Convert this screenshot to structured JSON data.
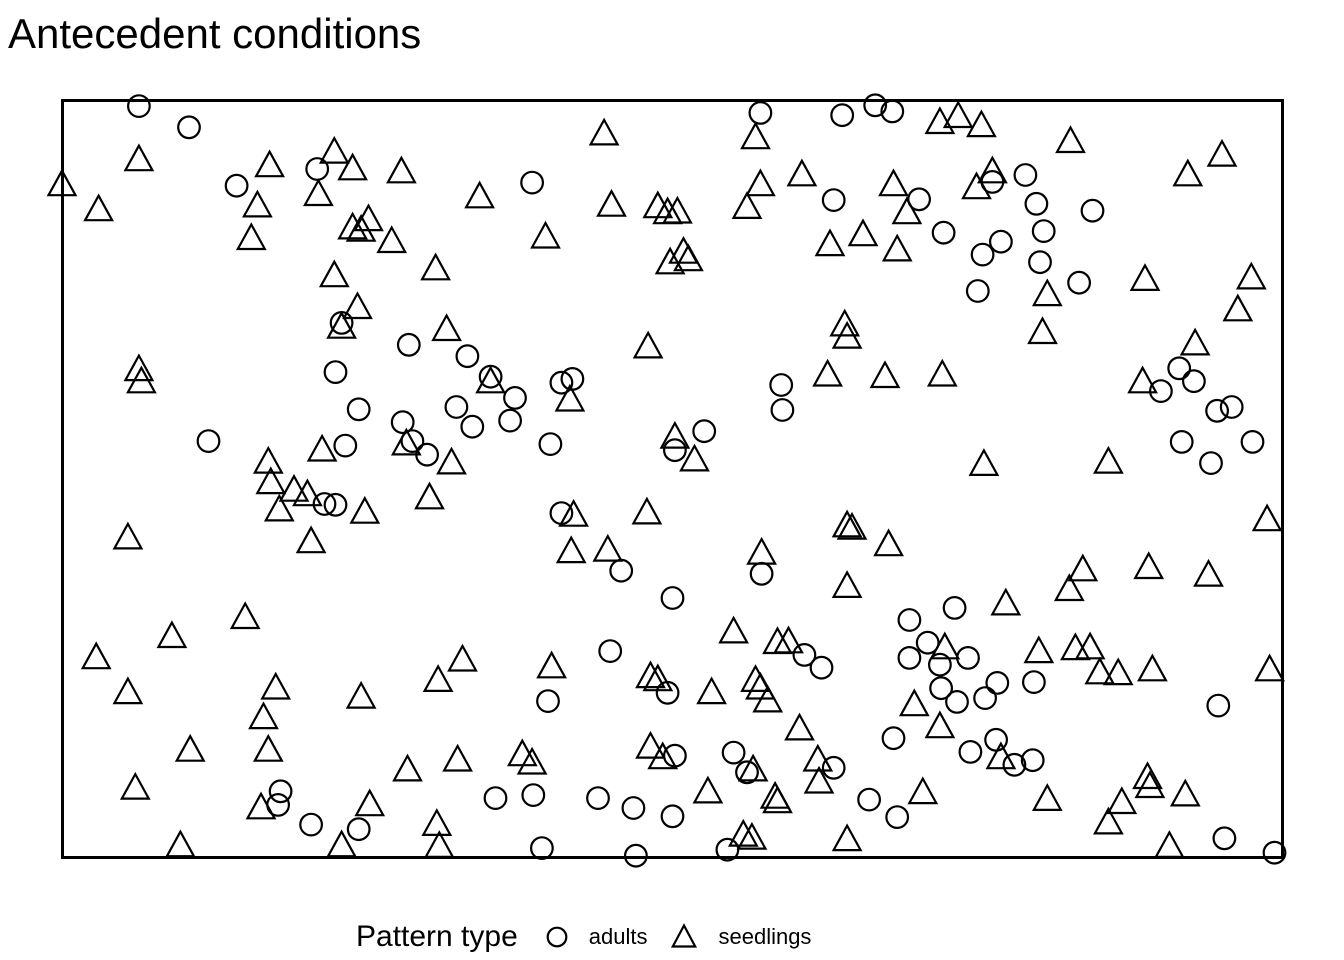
{
  "title": "Antecedent conditions",
  "legend": {
    "label": "Pattern type",
    "items": [
      {
        "name": "adults",
        "marker": "circle"
      },
      {
        "name": "seedlings",
        "marker": "triangle"
      }
    ]
  },
  "colors": {
    "background": "#ffffff",
    "frame": "#000000",
    "marker_stroke": "#000000"
  },
  "chart_data": {
    "type": "scatter",
    "title": "Antecedent conditions",
    "xlabel": "",
    "ylabel": "",
    "axes_hidden": true,
    "grid": false,
    "legend_position": "bottom",
    "window": {
      "xlim": [
        0,
        1
      ],
      "ylim": [
        0,
        1
      ]
    },
    "series": [
      {
        "name": "adults",
        "marker": "circle",
        "points": [
          [
            0.063,
            0.992
          ],
          [
            0.104,
            0.964
          ],
          [
            0.143,
            0.887
          ],
          [
            0.209,
            0.909
          ],
          [
            0.229,
            0.706
          ],
          [
            0.385,
            0.891
          ],
          [
            0.284,
            0.677
          ],
          [
            0.332,
            0.662
          ],
          [
            0.572,
            0.983
          ],
          [
            0.639,
            0.98
          ],
          [
            0.666,
            0.993
          ],
          [
            0.68,
            0.985
          ],
          [
            0.632,
            0.868
          ],
          [
            0.702,
            0.869
          ],
          [
            0.722,
            0.825
          ],
          [
            0.75,
            0.748
          ],
          [
            0.762,
            0.892
          ],
          [
            0.789,
            0.901
          ],
          [
            0.798,
            0.863
          ],
          [
            0.844,
            0.854
          ],
          [
            0.804,
            0.827
          ],
          [
            0.769,
            0.813
          ],
          [
            0.754,
            0.796
          ],
          [
            0.801,
            0.786
          ],
          [
            0.833,
            0.759
          ],
          [
            0.224,
            0.641
          ],
          [
            0.243,
            0.592
          ],
          [
            0.12,
            0.55
          ],
          [
            0.232,
            0.544
          ],
          [
            0.215,
            0.467
          ],
          [
            0.224,
            0.466
          ],
          [
            0.351,
            0.635
          ],
          [
            0.371,
            0.607
          ],
          [
            0.367,
            0.577
          ],
          [
            0.323,
            0.595
          ],
          [
            0.336,
            0.569
          ],
          [
            0.279,
            0.575
          ],
          [
            0.287,
            0.55
          ],
          [
            0.299,
            0.532
          ],
          [
            0.409,
            0.627
          ],
          [
            0.418,
            0.632
          ],
          [
            0.4,
            0.546
          ],
          [
            0.409,
            0.455
          ],
          [
            0.458,
            0.379
          ],
          [
            0.5,
            0.343
          ],
          [
            0.502,
            0.538
          ],
          [
            0.526,
            0.563
          ],
          [
            0.589,
            0.624
          ],
          [
            0.59,
            0.591
          ],
          [
            0.573,
            0.375
          ],
          [
            0.731,
            0.33
          ],
          [
            0.915,
            0.646
          ],
          [
            0.927,
            0.629
          ],
          [
            0.9,
            0.616
          ],
          [
            0.946,
            0.59
          ],
          [
            0.958,
            0.595
          ],
          [
            0.917,
            0.549
          ],
          [
            0.941,
            0.521
          ],
          [
            0.975,
            0.549
          ],
          [
            0.179,
            0.088
          ],
          [
            0.177,
            0.07
          ],
          [
            0.204,
            0.044
          ],
          [
            0.243,
            0.038
          ],
          [
            0.355,
            0.079
          ],
          [
            0.386,
            0.083
          ],
          [
            0.398,
            0.207
          ],
          [
            0.449,
            0.273
          ],
          [
            0.496,
            0.218
          ],
          [
            0.439,
            0.079
          ],
          [
            0.468,
            0.066
          ],
          [
            0.5,
            0.055
          ],
          [
            0.393,
            0.013
          ],
          [
            0.47,
            0.003
          ],
          [
            0.502,
            0.135
          ],
          [
            0.608,
            0.268
          ],
          [
            0.622,
            0.251
          ],
          [
            0.694,
            0.314
          ],
          [
            0.709,
            0.284
          ],
          [
            0.694,
            0.264
          ],
          [
            0.719,
            0.255
          ],
          [
            0.742,
            0.264
          ],
          [
            0.72,
            0.224
          ],
          [
            0.733,
            0.206
          ],
          [
            0.756,
            0.211
          ],
          [
            0.55,
            0.139
          ],
          [
            0.561,
            0.113
          ],
          [
            0.632,
            0.119
          ],
          [
            0.661,
            0.077
          ],
          [
            0.684,
            0.054
          ],
          [
            0.545,
            0.011
          ],
          [
            0.681,
            0.158
          ],
          [
            0.744,
            0.14
          ],
          [
            0.766,
            0.231
          ],
          [
            0.796,
            0.232
          ],
          [
            0.947,
            0.201
          ],
          [
            0.765,
            0.156
          ],
          [
            0.78,
            0.123
          ],
          [
            0.795,
            0.129
          ],
          [
            0.952,
            0.026
          ],
          [
            0.993,
            0.007
          ]
        ]
      },
      {
        "name": "seedlings",
        "marker": "triangle",
        "points": [
          [
            0.063,
            0.921
          ],
          [
            0.0,
            0.888
          ],
          [
            0.03,
            0.855
          ],
          [
            0.17,
            0.913
          ],
          [
            0.16,
            0.86
          ],
          [
            0.155,
            0.817
          ],
          [
            0.223,
            0.931
          ],
          [
            0.238,
            0.909
          ],
          [
            0.21,
            0.875
          ],
          [
            0.238,
            0.831
          ],
          [
            0.245,
            0.828
          ],
          [
            0.223,
            0.768
          ],
          [
            0.242,
            0.726
          ],
          [
            0.229,
            0.7
          ],
          [
            0.444,
            0.955
          ],
          [
            0.278,
            0.905
          ],
          [
            0.342,
            0.872
          ],
          [
            0.251,
            0.842
          ],
          [
            0.27,
            0.813
          ],
          [
            0.306,
            0.777
          ],
          [
            0.396,
            0.819
          ],
          [
            0.45,
            0.861
          ],
          [
            0.488,
            0.859
          ],
          [
            0.496,
            0.851
          ],
          [
            0.498,
            0.785
          ],
          [
            0.315,
            0.697
          ],
          [
            0.48,
            0.674
          ],
          [
            0.568,
            0.95
          ],
          [
            0.572,
            0.888
          ],
          [
            0.606,
            0.901
          ],
          [
            0.561,
            0.858
          ],
          [
            0.504,
            0.852
          ],
          [
            0.681,
            0.888
          ],
          [
            0.692,
            0.851
          ],
          [
            0.719,
            0.97
          ],
          [
            0.734,
            0.978
          ],
          [
            0.753,
            0.966
          ],
          [
            0.509,
            0.799
          ],
          [
            0.513,
            0.789
          ],
          [
            0.629,
            0.809
          ],
          [
            0.656,
            0.822
          ],
          [
            0.684,
            0.802
          ],
          [
            0.641,
            0.703
          ],
          [
            0.643,
            0.687
          ],
          [
            0.762,
            0.905
          ],
          [
            0.749,
            0.884
          ],
          [
            0.826,
            0.945
          ],
          [
            0.922,
            0.901
          ],
          [
            0.95,
            0.927
          ],
          [
            0.807,
            0.743
          ],
          [
            0.887,
            0.763
          ],
          [
            0.974,
            0.765
          ],
          [
            0.963,
            0.723
          ],
          [
            0.803,
            0.693
          ],
          [
            0.928,
            0.678
          ],
          [
            0.063,
            0.644
          ],
          [
            0.065,
            0.628
          ],
          [
            0.213,
            0.538
          ],
          [
            0.169,
            0.522
          ],
          [
            0.171,
            0.495
          ],
          [
            0.19,
            0.485
          ],
          [
            0.201,
            0.479
          ],
          [
            0.178,
            0.459
          ],
          [
            0.248,
            0.456
          ],
          [
            0.204,
            0.417
          ],
          [
            0.054,
            0.422
          ],
          [
            0.351,
            0.628
          ],
          [
            0.282,
            0.546
          ],
          [
            0.319,
            0.521
          ],
          [
            0.416,
            0.604
          ],
          [
            0.301,
            0.475
          ],
          [
            0.419,
            0.452
          ],
          [
            0.417,
            0.404
          ],
          [
            0.447,
            0.406
          ],
          [
            0.479,
            0.455
          ],
          [
            0.502,
            0.555
          ],
          [
            0.518,
            0.525
          ],
          [
            0.627,
            0.637
          ],
          [
            0.674,
            0.635
          ],
          [
            0.721,
            0.637
          ],
          [
            0.643,
            0.438
          ],
          [
            0.647,
            0.435
          ],
          [
            0.677,
            0.413
          ],
          [
            0.573,
            0.402
          ],
          [
            0.643,
            0.358
          ],
          [
            0.755,
            0.519
          ],
          [
            0.857,
            0.522
          ],
          [
            0.885,
            0.628
          ],
          [
            0.987,
            0.446
          ],
          [
            0.836,
            0.38
          ],
          [
            0.825,
            0.354
          ],
          [
            0.89,
            0.383
          ],
          [
            0.939,
            0.373
          ],
          [
            0.773,
            0.335
          ],
          [
            0.15,
            0.317
          ],
          [
            0.09,
            0.292
          ],
          [
            0.028,
            0.264
          ],
          [
            0.054,
            0.218
          ],
          [
            0.175,
            0.224
          ],
          [
            0.165,
            0.185
          ],
          [
            0.169,
            0.142
          ],
          [
            0.105,
            0.142
          ],
          [
            0.06,
            0.092
          ],
          [
            0.245,
            0.212
          ],
          [
            0.163,
            0.066
          ],
          [
            0.252,
            0.07
          ],
          [
            0.229,
            0.016
          ],
          [
            0.097,
            0.016
          ],
          [
            0.328,
            0.261
          ],
          [
            0.308,
            0.234
          ],
          [
            0.401,
            0.252
          ],
          [
            0.482,
            0.239
          ],
          [
            0.488,
            0.235
          ],
          [
            0.283,
            0.116
          ],
          [
            0.324,
            0.129
          ],
          [
            0.377,
            0.136
          ],
          [
            0.385,
            0.125
          ],
          [
            0.307,
            0.044
          ],
          [
            0.309,
            0.015
          ],
          [
            0.482,
            0.146
          ],
          [
            0.492,
            0.132
          ],
          [
            0.55,
            0.298
          ],
          [
            0.586,
            0.284
          ],
          [
            0.595,
            0.285
          ],
          [
            0.532,
            0.218
          ],
          [
            0.568,
            0.234
          ],
          [
            0.572,
            0.224
          ],
          [
            0.578,
            0.207
          ],
          [
            0.604,
            0.17
          ],
          [
            0.566,
            0.116
          ],
          [
            0.529,
            0.087
          ],
          [
            0.584,
            0.08
          ],
          [
            0.586,
            0.074
          ],
          [
            0.619,
            0.129
          ],
          [
            0.62,
            0.1
          ],
          [
            0.558,
            0.03
          ],
          [
            0.565,
            0.026
          ],
          [
            0.643,
            0.024
          ],
          [
            0.705,
            0.086
          ],
          [
            0.723,
            0.277
          ],
          [
            0.698,
            0.202
          ],
          [
            0.719,
            0.173
          ],
          [
            0.8,
            0.272
          ],
          [
            0.83,
            0.276
          ],
          [
            0.842,
            0.277
          ],
          [
            0.85,
            0.244
          ],
          [
            0.865,
            0.243
          ],
          [
            0.893,
            0.248
          ],
          [
            0.989,
            0.248
          ],
          [
            0.769,
            0.132
          ],
          [
            0.807,
            0.077
          ],
          [
            0.889,
            0.106
          ],
          [
            0.891,
            0.094
          ],
          [
            0.868,
            0.073
          ],
          [
            0.92,
            0.083
          ],
          [
            0.857,
            0.046
          ],
          [
            0.907,
            0.015
          ]
        ]
      }
    ]
  }
}
